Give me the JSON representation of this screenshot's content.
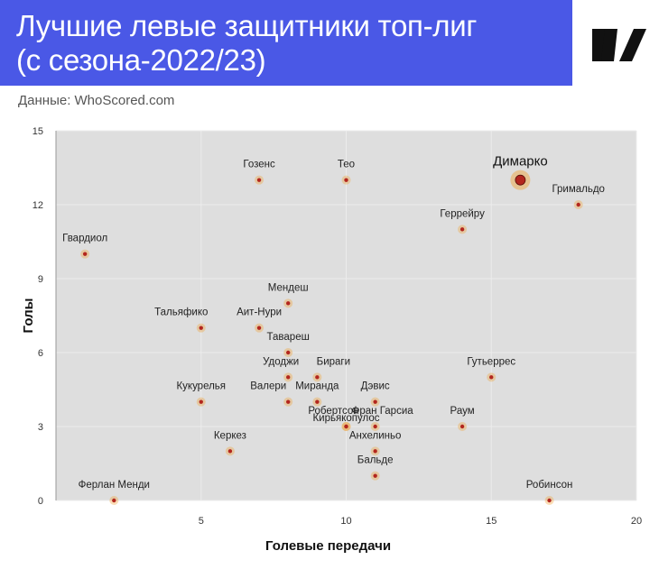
{
  "header": {
    "title": "Лучшие левые защитники топ-лиг\n(с сезона-2022/23)",
    "logo": "sports-ru-logo"
  },
  "source": "Данные: WhoScored.com",
  "colors": {
    "header_bg": "#4a58e6",
    "plot_bg": "#dedede",
    "point": "#b3261e",
    "halo": "#f0a030"
  },
  "chart_data": {
    "type": "scatter",
    "xlabel": "Голевые передачи",
    "ylabel": "Голы",
    "xlim": [
      0,
      20
    ],
    "ylim": [
      0,
      15
    ],
    "xticks": [
      5,
      10,
      15,
      20
    ],
    "yticks": [
      0,
      3,
      6,
      9,
      12,
      15
    ],
    "grid": true,
    "points": [
      {
        "label": "Димарко",
        "x": 16,
        "y": 13,
        "highlight": true
      },
      {
        "label": "Гозенс",
        "x": 7,
        "y": 13
      },
      {
        "label": "Тео",
        "x": 10,
        "y": 13
      },
      {
        "label": "Гримальдо",
        "x": 18,
        "y": 12
      },
      {
        "label": "Геррейру",
        "x": 14,
        "y": 11
      },
      {
        "label": "Гвардиол",
        "x": 1,
        "y": 10
      },
      {
        "label": "Мендеш",
        "x": 8,
        "y": 8
      },
      {
        "label": "Тальяфико",
        "x": 5,
        "y": 7
      },
      {
        "label": "Аит-Нури",
        "x": 7,
        "y": 7
      },
      {
        "label": "Тавареш",
        "x": 8,
        "y": 6
      },
      {
        "label": "Удоджи",
        "x": 8,
        "y": 5
      },
      {
        "label": "Бираги",
        "x": 9,
        "y": 5
      },
      {
        "label": "Гутьеррес",
        "x": 15,
        "y": 5
      },
      {
        "label": "Кукурелья",
        "x": 5,
        "y": 4
      },
      {
        "label": "Валери",
        "x": 8,
        "y": 4
      },
      {
        "label": "Миранда",
        "x": 9,
        "y": 4
      },
      {
        "label": "Дэвис",
        "x": 11,
        "y": 4
      },
      {
        "label": "Робертсон",
        "x": 10,
        "y": 3
      },
      {
        "label": "Фран Гарсиа",
        "x": 11,
        "y": 3
      },
      {
        "label": "Кирьякопулос",
        "x": 10,
        "y": 3
      },
      {
        "label": "Раум",
        "x": 14,
        "y": 3
      },
      {
        "label": "Анхелиньо",
        "x": 11,
        "y": 2
      },
      {
        "label": "Керкез",
        "x": 6,
        "y": 2
      },
      {
        "label": "Бальде",
        "x": 11,
        "y": 1
      },
      {
        "label": "Ферлан Менди",
        "x": 2,
        "y": 0
      },
      {
        "label": "Робинсон",
        "x": 17,
        "y": 0
      }
    ]
  }
}
